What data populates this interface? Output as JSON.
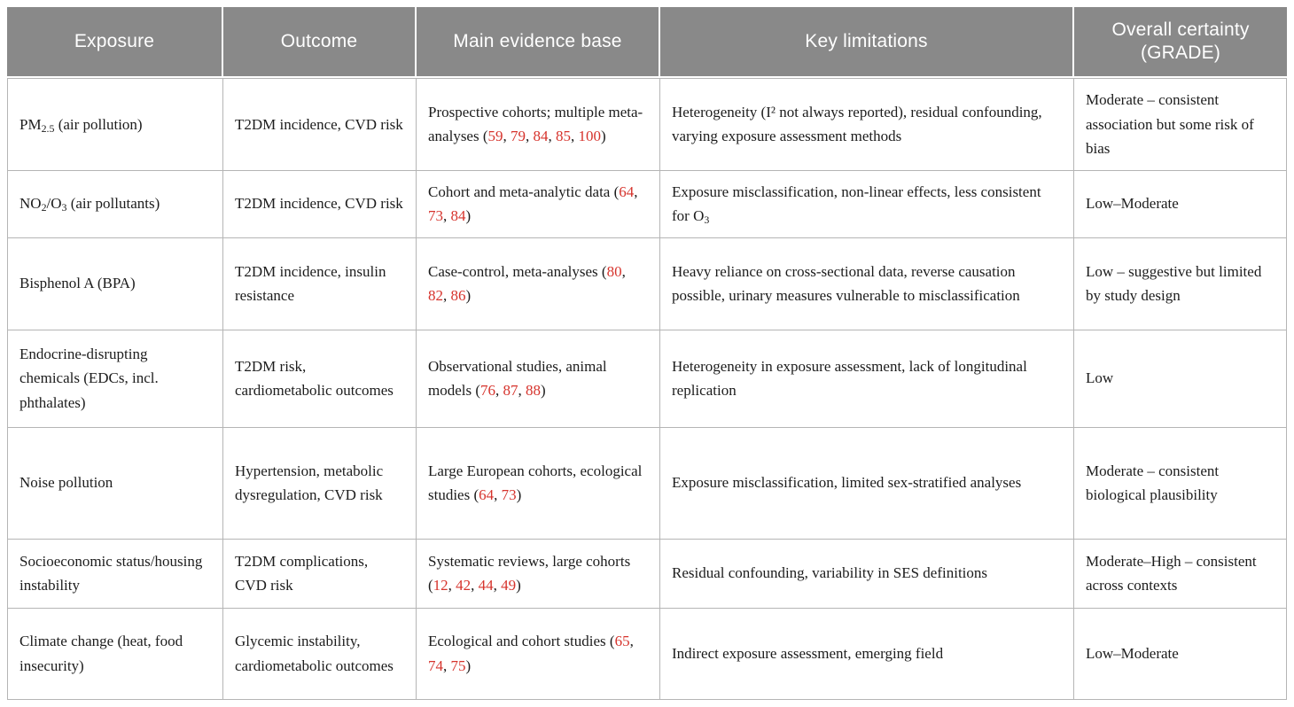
{
  "meta": {
    "header_bg_color": "#898989",
    "header_text_color": "#ffffff",
    "border_color": "#b5b5b5",
    "citation_red": "#d6332c"
  },
  "table": {
    "columns": [
      {
        "label": "Exposure"
      },
      {
        "label": "Outcome"
      },
      {
        "label": "Main evidence base"
      },
      {
        "label": "Key limitations"
      },
      {
        "label": "Overall certainty (GRADE)"
      }
    ],
    "rows": [
      {
        "exposure": [
          {
            "text": "PM"
          },
          {
            "text": "2.5",
            "sub": true
          },
          {
            "text": " (air pollution)"
          }
        ],
        "outcome": [
          {
            "text": "T2DM incidence, CVD risk"
          }
        ],
        "evidence": [
          {
            "text": "Prospective cohorts; multiple meta-analyses ("
          },
          {
            "text": "59",
            "cite": true
          },
          {
            "text": ", "
          },
          {
            "text": "79",
            "cite": true
          },
          {
            "text": ", "
          },
          {
            "text": "84",
            "cite": true
          },
          {
            "text": ", "
          },
          {
            "text": "85",
            "cite": true
          },
          {
            "text": ", "
          },
          {
            "text": "100",
            "cite": true
          },
          {
            "text": ")"
          }
        ],
        "limitations": [
          {
            "text": "Heterogeneity (I² not always reported), residual confounding, varying exposure assessment methods"
          }
        ],
        "certainty": [
          {
            "text": "Moderate – consistent association but some risk of bias"
          }
        ]
      },
      {
        "exposure": [
          {
            "text": "NO"
          },
          {
            "text": "2",
            "sub": true
          },
          {
            "text": "/O"
          },
          {
            "text": "3",
            "sub": true
          },
          {
            "text": " (air pollutants)"
          }
        ],
        "outcome": [
          {
            "text": "T2DM incidence, CVD risk"
          }
        ],
        "evidence": [
          {
            "text": "Cohort and meta-analytic data ("
          },
          {
            "text": "64",
            "cite": true
          },
          {
            "text": ", "
          },
          {
            "text": "73",
            "cite": true
          },
          {
            "text": ", "
          },
          {
            "text": "84",
            "cite": true
          },
          {
            "text": ")"
          }
        ],
        "limitations": [
          {
            "text": "Exposure misclassification, non-linear effects, less consistent for O"
          },
          {
            "text": "3",
            "sub": true
          }
        ],
        "certainty": [
          {
            "text": "Low–Moderate"
          }
        ]
      },
      {
        "exposure": [
          {
            "text": "Bisphenol A (BPA)"
          }
        ],
        "outcome": [
          {
            "text": "T2DM incidence, insulin resistance"
          }
        ],
        "evidence": [
          {
            "text": "Case-control, meta-analyses ("
          },
          {
            "text": "80",
            "cite": true
          },
          {
            "text": ", "
          },
          {
            "text": "82",
            "cite": true
          },
          {
            "text": ", "
          },
          {
            "text": "86",
            "cite": true
          },
          {
            "text": ")"
          }
        ],
        "limitations": [
          {
            "text": "Heavy reliance on cross-sectional data, reverse causation possible, urinary measures vulnerable to misclassification"
          }
        ],
        "certainty": [
          {
            "text": "Low – suggestive but limited by study design"
          }
        ]
      },
      {
        "exposure": [
          {
            "text": "Endocrine-disrupting chemicals (EDCs, incl. phthalates)"
          }
        ],
        "outcome": [
          {
            "text": "T2DM risk, cardiometabolic outcomes"
          }
        ],
        "evidence": [
          {
            "text": "Observational studies, animal models ("
          },
          {
            "text": "76",
            "cite": true
          },
          {
            "text": ", "
          },
          {
            "text": "87",
            "cite": true
          },
          {
            "text": ", "
          },
          {
            "text": "88",
            "cite": true
          },
          {
            "text": ")"
          }
        ],
        "limitations": [
          {
            "text": "Heterogeneity in exposure assessment, lack of longitudinal replication"
          }
        ],
        "certainty": [
          {
            "text": "Low"
          }
        ]
      },
      {
        "exposure": [
          {
            "text": "Noise pollution"
          }
        ],
        "outcome": [
          {
            "text": "Hypertension, metabolic dysregulation, CVD risk"
          }
        ],
        "evidence": [
          {
            "text": "Large European cohorts, ecological studies ("
          },
          {
            "text": "64",
            "cite": true
          },
          {
            "text": ", "
          },
          {
            "text": "73",
            "cite": true
          },
          {
            "text": ")"
          }
        ],
        "limitations": [
          {
            "text": "Exposure misclassification, limited sex-stratified analyses"
          }
        ],
        "certainty": [
          {
            "text": "Moderate – consistent biological plausibility"
          }
        ]
      },
      {
        "exposure": [
          {
            "text": "Socioeconomic status/housing instability"
          }
        ],
        "outcome": [
          {
            "text": "T2DM complications, CVD risk"
          }
        ],
        "evidence": [
          {
            "text": "Systematic reviews, large cohorts ("
          },
          {
            "text": "12",
            "cite": true
          },
          {
            "text": ", "
          },
          {
            "text": "42",
            "cite": true
          },
          {
            "text": ", "
          },
          {
            "text": "44",
            "cite": true
          },
          {
            "text": ", "
          },
          {
            "text": "49",
            "cite": true
          },
          {
            "text": ")"
          }
        ],
        "limitations": [
          {
            "text": "Residual confounding, variability in SES definitions"
          }
        ],
        "certainty": [
          {
            "text": "Moderate–High – consistent across contexts"
          }
        ]
      },
      {
        "exposure": [
          {
            "text": "Climate change (heat, food insecurity)"
          }
        ],
        "outcome": [
          {
            "text": "Glycemic instability, cardiometabolic outcomes"
          }
        ],
        "evidence": [
          {
            "text": "Ecological and cohort studies ("
          },
          {
            "text": "65",
            "cite": true
          },
          {
            "text": ", "
          },
          {
            "text": "74",
            "cite": true
          },
          {
            "text": ", "
          },
          {
            "text": "75",
            "cite": true
          },
          {
            "text": ")"
          }
        ],
        "limitations": [
          {
            "text": "Indirect exposure assessment, emerging field"
          }
        ],
        "certainty": [
          {
            "text": "Low–Moderate"
          }
        ]
      }
    ]
  }
}
